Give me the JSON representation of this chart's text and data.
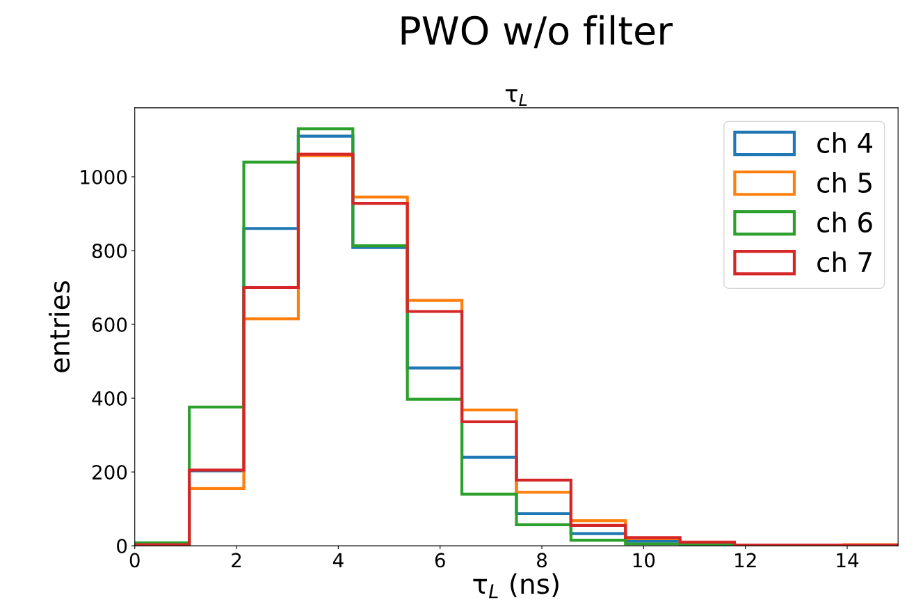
{
  "chart_data": {
    "type": "histogram",
    "title": "τ$_{L}$",
    "xlabel": "τ$_{L}$ (ns)",
    "ylabel": "entries",
    "annotations": [
      "PWO w/o filter"
    ],
    "bins": [
      0,
      1.0714,
      2.1429,
      3.2143,
      4.2857,
      5.3571,
      6.4286,
      7.5,
      8.5714,
      9.6429,
      10.7143,
      11.7857,
      12.8571,
      13.9286,
      15
    ],
    "series": [
      {
        "name": "ch 4",
        "color": "#1f77b4",
        "values": [
          2,
          203,
          860,
          1110,
          808,
          482,
          240,
          87,
          33,
          12,
          4,
          1,
          1,
          1
        ]
      },
      {
        "name": "ch 5",
        "color": "#ff7f0e",
        "values": [
          4,
          155,
          615,
          1057,
          945,
          665,
          368,
          145,
          68,
          19,
          5,
          2,
          2,
          3
        ]
      },
      {
        "name": "ch 6",
        "color": "#2ca02c",
        "values": [
          8,
          376,
          1040,
          1130,
          813,
          397,
          140,
          57,
          15,
          5,
          2,
          0,
          0,
          0
        ]
      },
      {
        "name": "ch 7",
        "color": "#d62728",
        "values": [
          3,
          205,
          700,
          1061,
          928,
          635,
          336,
          178,
          55,
          22,
          10,
          2,
          2,
          2
        ]
      }
    ],
    "xlim": [
      0,
      15
    ],
    "ylim": [
      0,
      1187
    ],
    "xticks": [
      0,
      2,
      4,
      6,
      8,
      10,
      12,
      14
    ],
    "yticks": [
      0,
      200,
      400,
      600,
      800,
      1000
    ],
    "legend": "top right",
    "grid": false
  }
}
